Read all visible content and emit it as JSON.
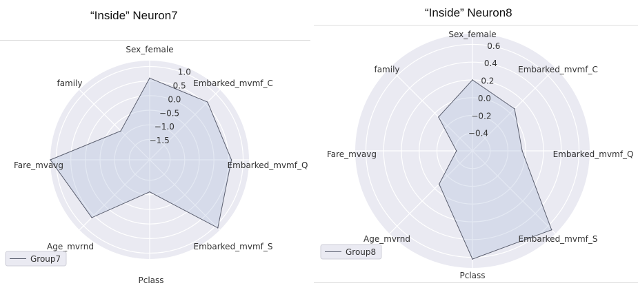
{
  "chart_data": [
    {
      "type": "radar",
      "title": "“Inside” Neuron7",
      "axes": [
        "Sex_female",
        "Embarked_mvmf_C",
        "Embarked_mvmf_Q",
        "Embarked_mvmf_S",
        "Pclass",
        "Age_mvrnd",
        "Fare_mvavg",
        "family"
      ],
      "rlim": [
        -2.2,
        1.2
      ],
      "rticks": [
        1.0,
        0.5,
        0.0,
        -0.5,
        -1.0,
        -1.5
      ],
      "rtick_labels": [
        "1.0",
        "0.5",
        "0.0",
        "−0.5",
        "−1.0",
        "−1.5"
      ],
      "grid": true,
      "legend_position": "bottom-left",
      "series": [
        {
          "name": "Group7",
          "values": [
            0.6,
            0.6,
            0.6,
            1.1,
            -1.1,
            0.6,
            1.2,
            -0.8
          ]
        }
      ]
    },
    {
      "type": "radar",
      "title": "“Inside” Neuron8",
      "axes": [
        "Sex_female",
        "Embarked_mvmf_C",
        "Embarked_mvmf_Q",
        "Embarked_mvmf_S",
        "Pclass",
        "Age_mvrnd",
        "Fare_mvavg",
        "family"
      ],
      "rlim": [
        -0.6,
        0.72
      ],
      "rticks": [
        0.6,
        0.4,
        0.2,
        0.0,
        -0.2,
        -0.4
      ],
      "rtick_labels": [
        "0.6",
        "0.4",
        "0.2",
        "0.0",
        "−0.2",
        "−0.4"
      ],
      "grid": true,
      "legend_position": "bottom-left",
      "series": [
        {
          "name": "Group8",
          "values": [
            0.2,
            0.07,
            -0.04,
            0.66,
            0.62,
            -0.07,
            -0.42,
            -0.06
          ]
        }
      ]
    }
  ]
}
